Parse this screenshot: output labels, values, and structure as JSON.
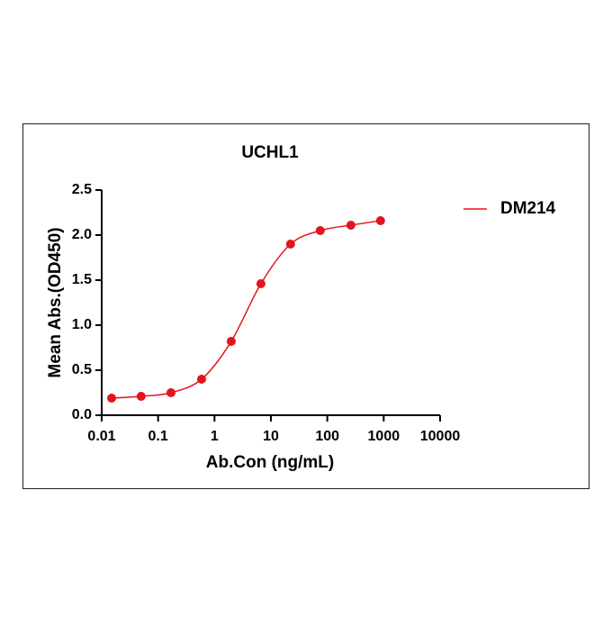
{
  "chart_data": {
    "type": "scatter-curve",
    "title": "UCHL1",
    "x_label": "Ab.Con (ng/mL)",
    "y_label": "Mean Abs.(OD450)",
    "xscale": "log",
    "xlim": [
      0.01,
      10000
    ],
    "xticks": [
      0.01,
      0.1,
      1,
      10,
      100,
      1000,
      10000
    ],
    "ylim": [
      0,
      2.5
    ],
    "yticks": [
      {
        "value": 0,
        "label": "0.0"
      },
      0.5,
      {
        "value": 1,
        "label": "1.0"
      },
      1.5,
      {
        "value": 2,
        "label": "2.0"
      },
      2.5
    ],
    "legend": "right",
    "series": [
      {
        "name": "DM214",
        "color": "#e3141c",
        "x": [
          0.015,
          0.05,
          0.169,
          0.59,
          1.98,
          6.65,
          22.3,
          75,
          262,
          879
        ],
        "values": [
          0.19,
          0.21,
          0.25,
          0.4,
          0.82,
          1.46,
          1.9,
          2.05,
          2.11,
          2.16
        ]
      }
    ]
  }
}
